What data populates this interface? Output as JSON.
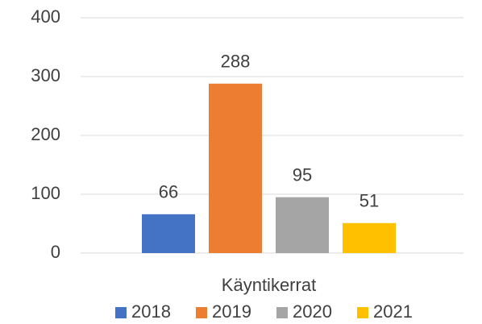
{
  "chart_data": {
    "type": "bar",
    "categories": [
      "Käyntikerrat"
    ],
    "series": [
      {
        "name": "2018",
        "color": "#4472c4",
        "values": [
          66
        ]
      },
      {
        "name": "2019",
        "color": "#ed7d31",
        "values": [
          288
        ]
      },
      {
        "name": "2020",
        "color": "#a5a5a5",
        "values": [
          95
        ]
      },
      {
        "name": "2021",
        "color": "#ffc000",
        "values": [
          51
        ]
      }
    ],
    "ylim": [
      0,
      400
    ],
    "yticks": [
      0,
      100,
      200,
      300,
      400
    ],
    "grid": true,
    "legend": "bottom",
    "data_labels": true
  }
}
